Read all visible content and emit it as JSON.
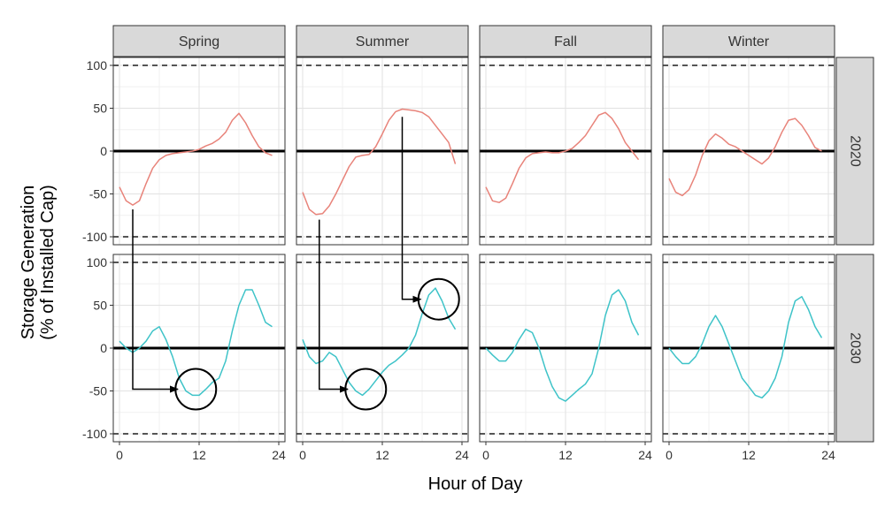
{
  "chart_data": {
    "type": "line",
    "xlabel": "Hour of Day",
    "ylabel_lines": [
      "Storage Generation",
      "(% of Installed Cap)"
    ],
    "xlim": [
      0,
      24
    ],
    "ylim": [
      -100,
      100
    ],
    "x_ticks": [
      0,
      12,
      24
    ],
    "x_tick_labels": [
      "0",
      "12",
      "24"
    ],
    "y_ticks": [
      -100,
      -50,
      0,
      50,
      100
    ],
    "y_tick_labels": [
      "-100",
      "-50",
      "0",
      "50",
      "100"
    ],
    "reference_lines": {
      "solid": [
        0
      ],
      "dashed": [
        -100,
        100
      ]
    },
    "grid": true,
    "columns": [
      "Spring",
      "Summer",
      "Fall",
      "Winter"
    ],
    "rows": [
      "2020",
      "2030"
    ],
    "colors": {
      "2020": "#e8837a",
      "2030": "#3ec3c8"
    },
    "panels": [
      {
        "season": "Spring",
        "year": "2020",
        "x": [
          0,
          1,
          2,
          3,
          4,
          5,
          6,
          7,
          8,
          9,
          10,
          11,
          12,
          13,
          14,
          15,
          16,
          17,
          18,
          19,
          20,
          21,
          22,
          23
        ],
        "y": [
          -42,
          -58,
          -63,
          -58,
          -38,
          -20,
          -10,
          -5,
          -3,
          -2,
          -1,
          0,
          2,
          6,
          9,
          14,
          22,
          36,
          44,
          33,
          18,
          5,
          -2,
          -5
        ]
      },
      {
        "season": "Summer",
        "year": "2020",
        "x": [
          0,
          1,
          2,
          3,
          4,
          5,
          6,
          7,
          8,
          9,
          10,
          11,
          12,
          13,
          14,
          15,
          16,
          17,
          18,
          19,
          20,
          21,
          22,
          23
        ],
        "y": [
          -48,
          -68,
          -74,
          -73,
          -64,
          -50,
          -34,
          -18,
          -7,
          -5,
          -4,
          5,
          20,
          36,
          46,
          49,
          48,
          47,
          45,
          40,
          30,
          20,
          10,
          -15
        ]
      },
      {
        "season": "Fall",
        "year": "2020",
        "x": [
          0,
          1,
          2,
          3,
          4,
          5,
          6,
          7,
          8,
          9,
          10,
          11,
          12,
          13,
          14,
          15,
          16,
          17,
          18,
          19,
          20,
          21,
          22,
          23
        ],
        "y": [
          -42,
          -58,
          -60,
          -55,
          -38,
          -20,
          -8,
          -3,
          -2,
          -1,
          -2,
          -2,
          0,
          3,
          10,
          18,
          30,
          42,
          45,
          38,
          26,
          10,
          0,
          -10
        ]
      },
      {
        "season": "Winter",
        "year": "2020",
        "x": [
          0,
          1,
          2,
          3,
          4,
          5,
          6,
          7,
          8,
          9,
          10,
          11,
          12,
          13,
          14,
          15,
          16,
          17,
          18,
          19,
          20,
          21,
          22,
          23
        ],
        "y": [
          -32,
          -48,
          -52,
          -45,
          -28,
          -5,
          12,
          20,
          15,
          8,
          5,
          0,
          -5,
          -10,
          -15,
          -8,
          5,
          22,
          36,
          38,
          30,
          18,
          4,
          0
        ]
      },
      {
        "season": "Spring",
        "year": "2030",
        "x": [
          0,
          1,
          2,
          3,
          4,
          5,
          6,
          7,
          8,
          9,
          10,
          11,
          12,
          13,
          14,
          15,
          16,
          17,
          18,
          19,
          20,
          21,
          22,
          23
        ],
        "y": [
          8,
          0,
          -5,
          0,
          8,
          20,
          25,
          10,
          -10,
          -35,
          -50,
          -55,
          -55,
          -48,
          -40,
          -35,
          -15,
          20,
          50,
          68,
          68,
          50,
          30,
          25
        ]
      },
      {
        "season": "Summer",
        "year": "2030",
        "x": [
          0,
          1,
          2,
          3,
          4,
          5,
          6,
          7,
          8,
          9,
          10,
          11,
          12,
          13,
          14,
          15,
          16,
          17,
          18,
          19,
          20,
          21,
          22,
          23
        ],
        "y": [
          10,
          -10,
          -18,
          -15,
          -5,
          -10,
          -25,
          -40,
          -50,
          -55,
          -48,
          -38,
          -28,
          -20,
          -15,
          -8,
          0,
          15,
          40,
          62,
          70,
          55,
          35,
          22
        ]
      },
      {
        "season": "Fall",
        "year": "2030",
        "x": [
          0,
          1,
          2,
          3,
          4,
          5,
          6,
          7,
          8,
          9,
          10,
          11,
          12,
          13,
          14,
          15,
          16,
          17,
          18,
          19,
          20,
          21,
          22,
          23
        ],
        "y": [
          0,
          -8,
          -15,
          -15,
          -5,
          10,
          22,
          18,
          0,
          -25,
          -45,
          -58,
          -62,
          -55,
          -48,
          -42,
          -30,
          0,
          38,
          62,
          68,
          55,
          30,
          15
        ]
      },
      {
        "season": "Winter",
        "year": "2030",
        "x": [
          0,
          1,
          2,
          3,
          4,
          5,
          6,
          7,
          8,
          9,
          10,
          11,
          12,
          13,
          14,
          15,
          16,
          17,
          18,
          19,
          20,
          21,
          22,
          23
        ],
        "y": [
          0,
          -10,
          -18,
          -18,
          -10,
          5,
          25,
          38,
          25,
          5,
          -15,
          -35,
          -45,
          -55,
          -58,
          -50,
          -35,
          -10,
          30,
          55,
          60,
          45,
          25,
          12
        ]
      }
    ],
    "annotations": [
      {
        "type": "circle",
        "season": "Spring",
        "year": "2030",
        "x": 11.5,
        "y": -48
      },
      {
        "type": "circle",
        "season": "Summer",
        "year": "2030",
        "x": 9.5,
        "y": -48
      },
      {
        "type": "circle",
        "season": "Summer",
        "year": "2030",
        "x": 20.5,
        "y": 57
      },
      {
        "type": "arrow",
        "from": {
          "season": "Spring",
          "year": "2020",
          "x": 2,
          "y": -68
        },
        "to": {
          "season": "Spring",
          "year": "2030",
          "x": 8.8,
          "y": -48
        }
      },
      {
        "type": "arrow",
        "from": {
          "season": "Summer",
          "year": "2020",
          "x": 2.5,
          "y": -80
        },
        "to": {
          "season": "Summer",
          "year": "2030",
          "x": 6.8,
          "y": -48
        }
      },
      {
        "type": "arrow",
        "from": {
          "season": "Summer",
          "year": "2020",
          "x": 15,
          "y": 40
        },
        "to": {
          "season": "Summer",
          "year": "2030",
          "x": 17.8,
          "y": 57
        }
      }
    ]
  }
}
